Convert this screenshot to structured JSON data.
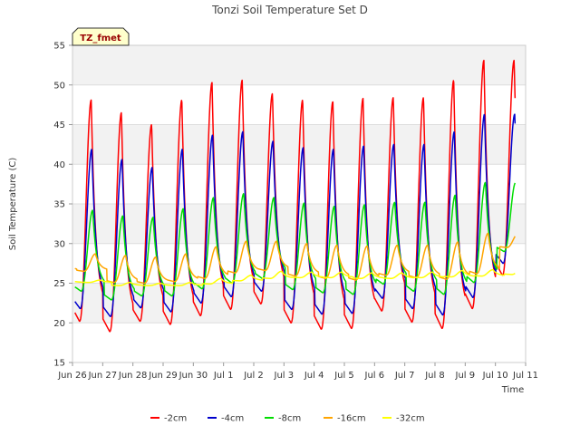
{
  "chart_data": {
    "type": "line",
    "title": "Tonzi Soil Temperature Set D",
    "xlabel": "Time",
    "ylabel": "Soil Temperature (C)",
    "ylim": [
      15,
      55
    ],
    "xlim": [
      "2024-06-26",
      "2024-07-11"
    ],
    "yticks": [
      15,
      20,
      25,
      30,
      35,
      40,
      45,
      50,
      55
    ],
    "xticks": [
      "Jun 26",
      "Jun 27",
      "Jun 28",
      "Jun 29",
      "Jun 30",
      "Jul 1",
      "Jul 2",
      "Jul 3",
      "Jul 4",
      "Jul 5",
      "Jul 6",
      "Jul 7",
      "Jul 8",
      "Jul 9",
      "Jul 10",
      "Jul 11"
    ],
    "grid": true,
    "legend_position": "bottom",
    "tag_label": "TZ_fmet",
    "days": [
      "Jun 26",
      "Jun 27",
      "Jun 28",
      "Jun 29",
      "Jun 30",
      "Jul 1",
      "Jul 2",
      "Jul 3",
      "Jul 4",
      "Jul 5",
      "Jul 6",
      "Jul 7",
      "Jul 8",
      "Jul 9",
      "Jul 10"
    ],
    "series": [
      {
        "name": "-2cm",
        "color": "#ff0000",
        "daily_min": [
          20.2,
          18.9,
          20.2,
          19.8,
          20.9,
          21.7,
          22.4,
          20.0,
          19.2,
          19.3,
          21.5,
          20.1,
          19.3,
          21.8,
          26.0
        ],
        "daily_max": [
          48.1,
          46.5,
          45.0,
          48.1,
          50.3,
          50.6,
          48.9,
          48.1,
          47.9,
          48.3,
          48.4,
          48.4,
          50.6,
          53.1,
          53.1
        ]
      },
      {
        "name": "-4cm",
        "color": "#0000cc",
        "daily_min": [
          21.8,
          20.8,
          21.9,
          21.4,
          22.5,
          23.3,
          24.0,
          21.7,
          21.1,
          21.2,
          23.1,
          21.8,
          21.0,
          23.2,
          27.5
        ],
        "daily_max": [
          41.9,
          40.6,
          39.6,
          41.9,
          43.7,
          44.1,
          42.9,
          42.1,
          41.9,
          42.3,
          42.5,
          42.5,
          44.1,
          46.3,
          46.3
        ]
      },
      {
        "name": "-8cm",
        "color": "#00dd00",
        "daily_min": [
          24.0,
          22.9,
          23.4,
          23.4,
          24.3,
          25.0,
          25.6,
          24.2,
          23.8,
          23.6,
          24.9,
          24.0,
          23.6,
          25.1,
          29.0
        ],
        "daily_max": [
          34.2,
          33.5,
          33.3,
          34.4,
          35.8,
          36.3,
          35.8,
          35.1,
          34.7,
          34.9,
          35.2,
          35.2,
          36.1,
          37.7,
          37.7
        ]
      },
      {
        "name": "-16cm",
        "color": "#ffa500",
        "daily_min": [
          26.5,
          25.1,
          25.0,
          25.2,
          25.6,
          26.3,
          26.6,
          25.9,
          25.6,
          25.4,
          26.0,
          25.7,
          25.5,
          26.2,
          29.5
        ],
        "daily_max": [
          28.7,
          28.5,
          28.3,
          28.7,
          29.6,
          30.3,
          30.3,
          30.0,
          29.8,
          29.7,
          29.8,
          29.8,
          30.2,
          31.3,
          31.3
        ]
      },
      {
        "name": "-32cm",
        "color": "#ffff00",
        "daily_min": [
          25.1,
          24.7,
          24.7,
          24.7,
          24.9,
          25.3,
          25.6,
          25.7,
          25.7,
          25.6,
          25.6,
          25.7,
          25.8,
          25.9,
          26.1
        ],
        "daily_max": [
          25.4,
          25.1,
          25.0,
          25.1,
          25.6,
          26.0,
          26.5,
          26.4,
          26.4,
          26.3,
          26.3,
          26.4,
          26.6,
          26.7,
          27.0
        ]
      }
    ]
  }
}
